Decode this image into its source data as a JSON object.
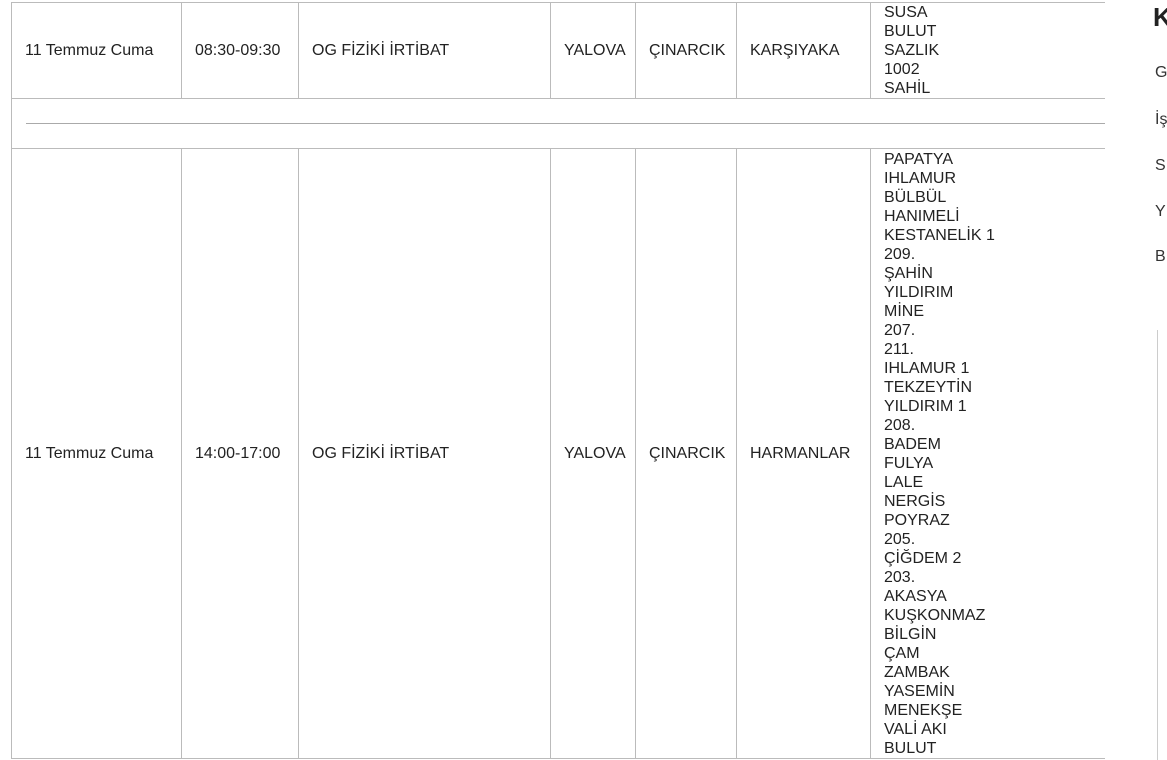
{
  "table": {
    "rows": [
      {
        "date": "11 Temmuz Cuma",
        "time": "08:30-09:30",
        "type": "OG FİZİKİ İRTİBAT",
        "city": "YALOVA",
        "district": "ÇINARCIK",
        "neighborhood": "KARŞIYAKA",
        "streets": [
          "SUSA",
          "BULUT",
          "SAZLIK",
          "1002",
          "SAHİL"
        ]
      },
      {
        "date": "11 Temmuz Cuma",
        "time": "14:00-17:00",
        "type": "OG FİZİKİ İRTİBAT",
        "city": "YALOVA",
        "district": "ÇINARCIK",
        "neighborhood": "HARMANLAR",
        "streets": [
          "PAPATYA",
          "IHLAMUR",
          "BÜLBÜL",
          "HANIMELİ",
          "KESTANELİK 1",
          "209.",
          "ŞAHİN",
          "YILDIRIM",
          "MİNE",
          "207.",
          "211.",
          "IHLAMUR 1",
          "TEKZEYTİN",
          "YILDIRIM 1",
          "208.",
          "BADEM",
          "FULYA",
          "LALE",
          "NERGİS",
          "POYRAZ",
          "205.",
          "ÇİĞDEM 2",
          "203.",
          "AKASYA",
          "KUŞKONMAZ",
          "BİLGİN",
          "ÇAM",
          "ZAMBAK",
          "YASEMİN",
          "MENEKŞE",
          "VALİ AKI",
          "BULUT"
        ]
      }
    ]
  },
  "sidebar": {
    "title": "K",
    "items": [
      "G",
      "İş",
      "S",
      "Y",
      "B"
    ]
  }
}
